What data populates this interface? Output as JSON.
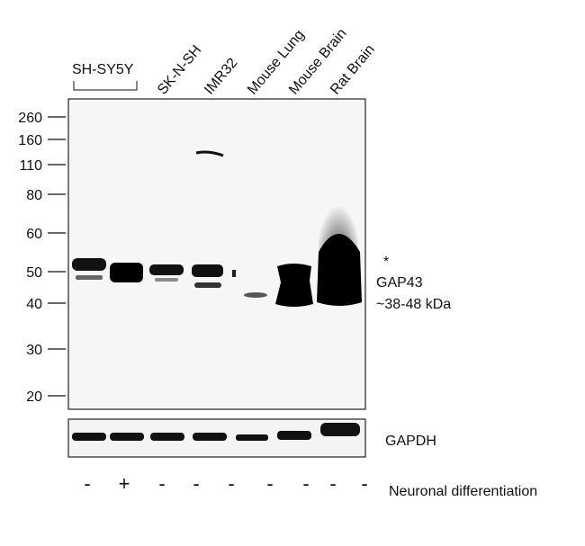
{
  "group_label": "SH-SY5Y",
  "lane_labels": [
    "SK-N-SH",
    "IMR32",
    "Mouse Lung",
    "Mouse Brain",
    "Rat Brain"
  ],
  "markers": [
    260,
    160,
    110,
    80,
    60,
    50,
    40,
    30,
    20
  ],
  "annotations": {
    "asterisk": "*",
    "protein": "GAP43",
    "size": "~38-48 kDa"
  },
  "loading_control": "GAPDH",
  "treatment": {
    "signs": [
      "-",
      "+",
      "-",
      "-",
      "-",
      "-",
      "-",
      "-",
      "-"
    ],
    "label": "Neuronal differentiation"
  }
}
